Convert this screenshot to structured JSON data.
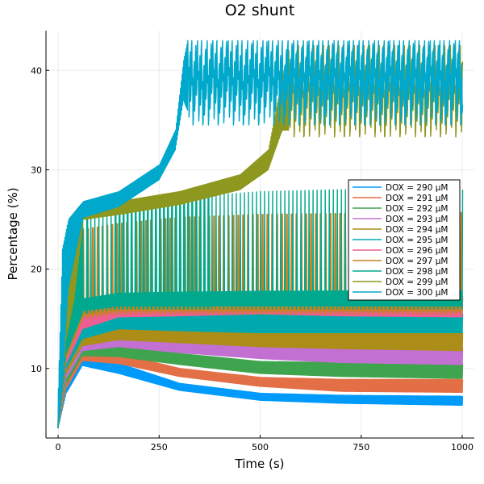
{
  "chart_data": {
    "type": "line",
    "title": "O2 shunt",
    "xlabel": "Time (s)",
    "ylabel": "Percentage (%)",
    "xlim": [
      -30,
      1030
    ],
    "ylim": [
      3,
      44
    ],
    "x_ticks": [
      0,
      250,
      500,
      750,
      1000
    ],
    "x_tick_labels": [
      "0",
      "250",
      "500",
      "750",
      "1000"
    ],
    "y_ticks": [
      10,
      20,
      30,
      40
    ],
    "y_tick_labels": [
      "10",
      "20",
      "30",
      "40"
    ],
    "grid": true,
    "legend_position": "right",
    "series": [
      {
        "name": "DOX = 290 μM",
        "color": "#009AFA",
        "shape": "band",
        "x": [
          0,
          20,
          60,
          150,
          300,
          500,
          700,
          1000
        ],
        "low": [
          4,
          7.5,
          10.3,
          9.5,
          7.8,
          6.8,
          6.5,
          6.3
        ],
        "high": [
          4.5,
          9.0,
          11.2,
          10.5,
          8.5,
          7.5,
          7.3,
          7.2
        ]
      },
      {
        "name": "DOX = 291 μM",
        "color": "#E36F47",
        "shape": "band",
        "x": [
          0,
          20,
          60,
          150,
          300,
          500,
          700,
          1000
        ],
        "low": [
          4,
          8.0,
          10.8,
          10.5,
          9.2,
          8.2,
          7.7,
          7.6
        ],
        "high": [
          4.8,
          9.5,
          11.8,
          11.5,
          10.0,
          9.1,
          8.9,
          8.9
        ]
      },
      {
        "name": "DOX = 292 μM",
        "color": "#3EA44E",
        "shape": "band",
        "x": [
          0,
          20,
          60,
          150,
          300,
          500,
          700,
          1000
        ],
        "low": [
          4,
          8.5,
          11.3,
          11.2,
          10.4,
          9.5,
          9.2,
          9.0
        ],
        "high": [
          5.0,
          10.0,
          12.3,
          12.5,
          11.5,
          10.7,
          10.6,
          10.5
        ]
      },
      {
        "name": "DOX = 293 μM",
        "color": "#C270D2",
        "shape": "band",
        "x": [
          0,
          20,
          60,
          150,
          300,
          500,
          700,
          1000
        ],
        "low": [
          4,
          9.0,
          11.8,
          12.2,
          11.6,
          11.0,
          10.6,
          10.4
        ],
        "high": [
          5.2,
          10.5,
          13.0,
          13.3,
          12.8,
          12.2,
          12.2,
          12.1
        ]
      },
      {
        "name": "DOX = 294 μM",
        "color": "#AC8D18",
        "shape": "band",
        "x": [
          0,
          20,
          60,
          150,
          300,
          500,
          700,
          1000
        ],
        "low": [
          4,
          9.5,
          12.3,
          12.9,
          12.6,
          12.2,
          12.0,
          11.8
        ],
        "high": [
          5.4,
          11.0,
          13.5,
          14.2,
          14.0,
          13.8,
          13.7,
          13.6
        ]
      },
      {
        "name": "DOX = 295 μM",
        "color": "#00A9AD",
        "shape": "band",
        "x": [
          0,
          20,
          60,
          150,
          300,
          500,
          700,
          1000
        ],
        "low": [
          4,
          10.0,
          13.0,
          14.0,
          13.8,
          13.6,
          13.6,
          13.6
        ],
        "high": [
          5.6,
          11.5,
          14.5,
          15.5,
          15.8,
          15.8,
          15.6,
          15.5
        ]
      },
      {
        "name": "DOX = 296 μM",
        "color": "#ED5E93",
        "shape": "band",
        "x": [
          0,
          20,
          60,
          150,
          300,
          500,
          700,
          1000
        ],
        "low": [
          4,
          10.5,
          14.0,
          15.2,
          15.3,
          15.5,
          15.3,
          15.2
        ],
        "high": [
          5.8,
          12.0,
          15.5,
          16.8,
          17.3,
          17.5,
          17.4,
          17.3
        ]
      },
      {
        "name": "DOX = 297 μM",
        "color": "#C68225",
        "shape": "spiky",
        "x": [
          0,
          20,
          60,
          150,
          300,
          500,
          700,
          1000
        ],
        "low": [
          4,
          11.0,
          15.0,
          15.5,
          15.5,
          15.5,
          15.5,
          15.5
        ],
        "high": [
          6.0,
          13.0,
          24.0,
          24.6,
          25.2,
          25.5,
          25.6,
          25.7
        ],
        "period": 12,
        "spike_start": 60
      },
      {
        "name": "DOX = 298 μM",
        "color": "#00A98D",
        "shape": "spiky",
        "x": [
          0,
          20,
          60,
          150,
          300,
          500,
          700,
          1000
        ],
        "low": [
          4,
          11.5,
          15.5,
          16.0,
          16.0,
          16.0,
          16.0,
          16.0
        ],
        "high": [
          6.2,
          13.5,
          25.5,
          26.5,
          27.2,
          27.8,
          28.0,
          28.0
        ],
        "period": 10,
        "spike_start": 60
      },
      {
        "name": "DOX = 299 μM",
        "color": "#8E971E",
        "shape": "escape",
        "x": [
          0,
          20,
          40,
          62,
          150,
          300,
          450,
          520,
          555,
          570,
          1000
        ],
        "low": [
          4,
          13,
          17,
          25.0,
          25.5,
          26.5,
          28.0,
          30.0,
          34.0,
          34.0,
          34.0
        ],
        "high": [
          6,
          20,
          24,
          26.0,
          26.8,
          27.8,
          29.5,
          32.0,
          39.5,
          42.0,
          42.0
        ],
        "escape_at": 570,
        "osc_low": 33.3,
        "osc_high": 42.5
      },
      {
        "name": "DOX = 300 μM",
        "color": "#00A8CB",
        "shape": "escape",
        "x": [
          0,
          10,
          25,
          45,
          62,
          150,
          250,
          290,
          310,
          320,
          1000
        ],
        "low": [
          4,
          8,
          18,
          22,
          25.2,
          26.3,
          29.0,
          32.0,
          37.0,
          36.0,
          36.0
        ],
        "high": [
          8,
          22,
          25,
          26,
          26.8,
          27.8,
          30.5,
          34.0,
          41.0,
          43.0,
          43.0
        ],
        "escape_at": 320,
        "osc_low": 34.5,
        "osc_high": 43.0
      }
    ]
  }
}
